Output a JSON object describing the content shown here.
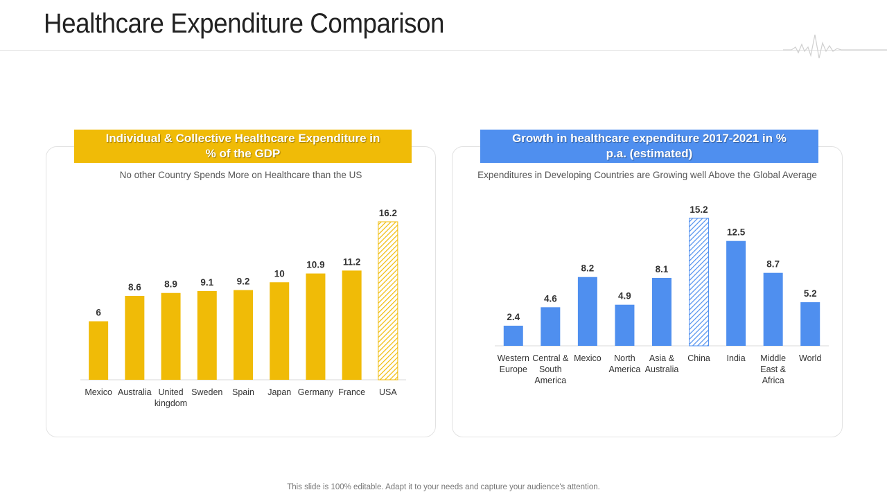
{
  "page": {
    "title": "Healthcare Expenditure Comparison",
    "footer": "This slide is 100% editable. Adapt it to your needs and capture your audience's attention."
  },
  "colors": {
    "yellow": "#f0bb07",
    "blue": "#4f8fef",
    "axis": "#d9d9d9"
  },
  "icons": {
    "header_decoration": "heartbeat-pulse-icon"
  },
  "chart_data": [
    {
      "type": "bar",
      "title": "Individual & Collective Healthcare Expenditure in % of the GDP",
      "subtitle": "No other Country Spends More on Healthcare than the US",
      "categories": [
        "Mexico",
        "Australia",
        "United kingdom",
        "Sweden",
        "Spain",
        "Japan",
        "Germany",
        "France",
        "USA"
      ],
      "category_lines": [
        [
          "Mexico"
        ],
        [
          "Australia"
        ],
        [
          "United",
          "kingdom"
        ],
        [
          "Sweden"
        ],
        [
          "Spain"
        ],
        [
          "Japan"
        ],
        [
          "Germany"
        ],
        [
          "France"
        ],
        [
          "USA"
        ]
      ],
      "values": [
        6,
        8.6,
        8.9,
        9.1,
        9.2,
        10,
        10.9,
        11.2,
        16.2
      ],
      "value_labels": [
        "6",
        "8.6",
        "8.9",
        "9.1",
        "9.2",
        "10",
        "10.9",
        "11.2",
        "16.2"
      ],
      "highlight": "USA",
      "color": "#f0bb07",
      "highlight_style": "hatched",
      "ylim": [
        0,
        16.2
      ],
      "grid": false,
      "data_labels": true
    },
    {
      "type": "bar",
      "title": "Growth in healthcare expenditure 2017-2021 in % p.a. (estimated)",
      "subtitle": "Expenditures in Developing Countries are Growing well Above the Global Average",
      "categories": [
        "Western Europe",
        "Central & South America",
        "Mexico",
        "North America",
        "Asia & Australia",
        "China",
        "India",
        "Middle East & Africa",
        "World"
      ],
      "category_lines": [
        [
          "Western",
          "Europe"
        ],
        [
          "Central &",
          "South",
          "America"
        ],
        [
          "Mexico"
        ],
        [
          "North",
          "America"
        ],
        [
          "Asia &",
          "Australia"
        ],
        [
          "China"
        ],
        [
          "India"
        ],
        [
          "Middle",
          "East &",
          "Africa"
        ],
        [
          "World"
        ]
      ],
      "values": [
        2.4,
        4.6,
        8.2,
        4.9,
        8.1,
        15.2,
        12.5,
        8.7,
        5.2
      ],
      "value_labels": [
        "2.4",
        "4.6",
        "8.2",
        "4.9",
        "8.1",
        "15.2",
        "12.5",
        "8.7",
        "5.2"
      ],
      "highlight": "China",
      "color": "#4f8fef",
      "highlight_style": "hatched",
      "ylim": [
        0,
        15.2
      ],
      "grid": false,
      "data_labels": true
    }
  ]
}
